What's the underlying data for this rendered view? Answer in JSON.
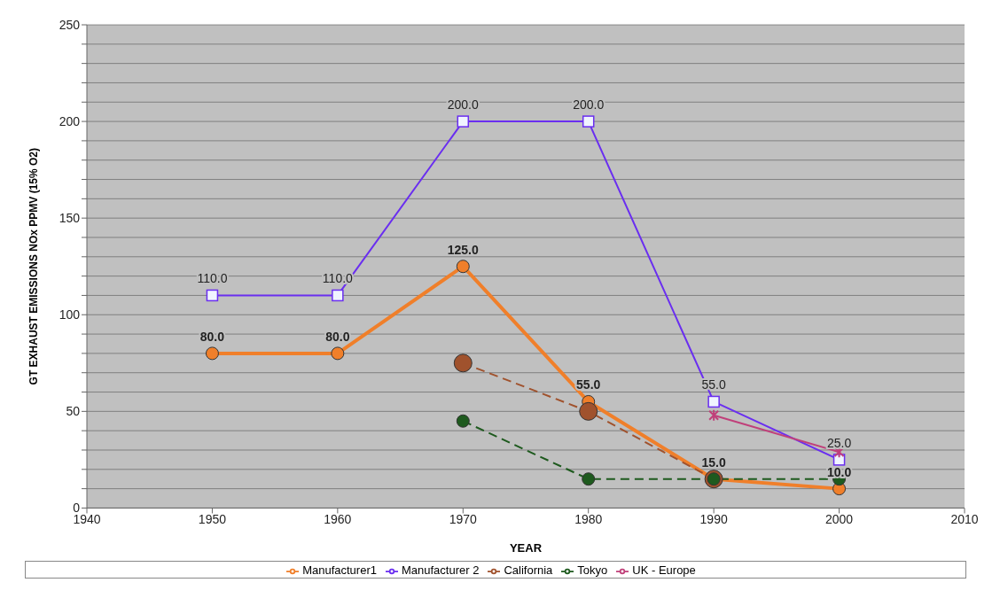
{
  "chart_data": {
    "type": "line",
    "xlabel": "YEAR",
    "ylabel": "GT EXHAUST EMISSIONS NOx PPMV (15% O2)",
    "x": [
      1950,
      1960,
      1970,
      1980,
      1990,
      2000
    ],
    "xlim": [
      1940,
      2010
    ],
    "xticks": [
      1940,
      1950,
      1960,
      1970,
      1980,
      1990,
      2000,
      2010
    ],
    "ylim": [
      0,
      250
    ],
    "yticks": [
      0,
      {
        "value": 10,
        "label": null
      },
      {
        "value": 20,
        "label": null
      },
      {
        "value": 30,
        "label": null
      },
      {
        "value": 40,
        "label": null
      },
      50,
      {
        "value": 60,
        "label": null
      },
      {
        "value": 70,
        "label": null
      },
      {
        "value": 80,
        "label": null
      },
      {
        "value": 90,
        "label": null
      },
      100,
      {
        "value": 110,
        "label": null
      },
      {
        "value": 120,
        "label": null
      },
      {
        "value": 130,
        "label": null
      },
      {
        "value": 140,
        "label": null
      },
      150,
      {
        "value": 160,
        "label": null
      },
      {
        "value": 170,
        "label": null
      },
      {
        "value": 180,
        "label": null
      },
      {
        "value": 190,
        "label": null
      },
      200,
      {
        "value": 210,
        "label": null
      },
      {
        "value": 220,
        "label": null
      },
      {
        "value": 230,
        "label": null
      },
      {
        "value": 240,
        "label": null
      },
      250
    ],
    "grid": "y",
    "legend": "bottom",
    "series": [
      {
        "name": "Manufacturer1",
        "color": "#f07f2a",
        "marker": "circle",
        "line_style": "solid",
        "values": [
          80,
          80,
          125,
          55,
          15,
          10
        ],
        "value_labels": [
          "80.0",
          "80.0",
          "125.0",
          "55.0",
          "15.0",
          "10.0"
        ]
      },
      {
        "name": "Manufacturer 2",
        "color": "#6a2ef0",
        "marker": "square",
        "line_style": "solid",
        "values": [
          110,
          110,
          200,
          200,
          55,
          25
        ],
        "value_labels": [
          "110.0",
          "110.0",
          "200.0",
          "200.0",
          "55.0",
          "25.0"
        ]
      },
      {
        "name": "California",
        "color": "#a0522d",
        "marker": "circle",
        "line_style": "dashed",
        "values": [
          null,
          null,
          75,
          50,
          15,
          null
        ]
      },
      {
        "name": "Tokyo",
        "color": "#1e5a1e",
        "marker": "circle",
        "line_style": "dashed",
        "values": [
          null,
          null,
          45,
          15,
          15,
          15
        ]
      },
      {
        "name": "UK - Europe",
        "color": "#c0407a",
        "marker": "cross",
        "line_style": "solid",
        "values": [
          null,
          null,
          null,
          null,
          48,
          29
        ]
      }
    ]
  }
}
